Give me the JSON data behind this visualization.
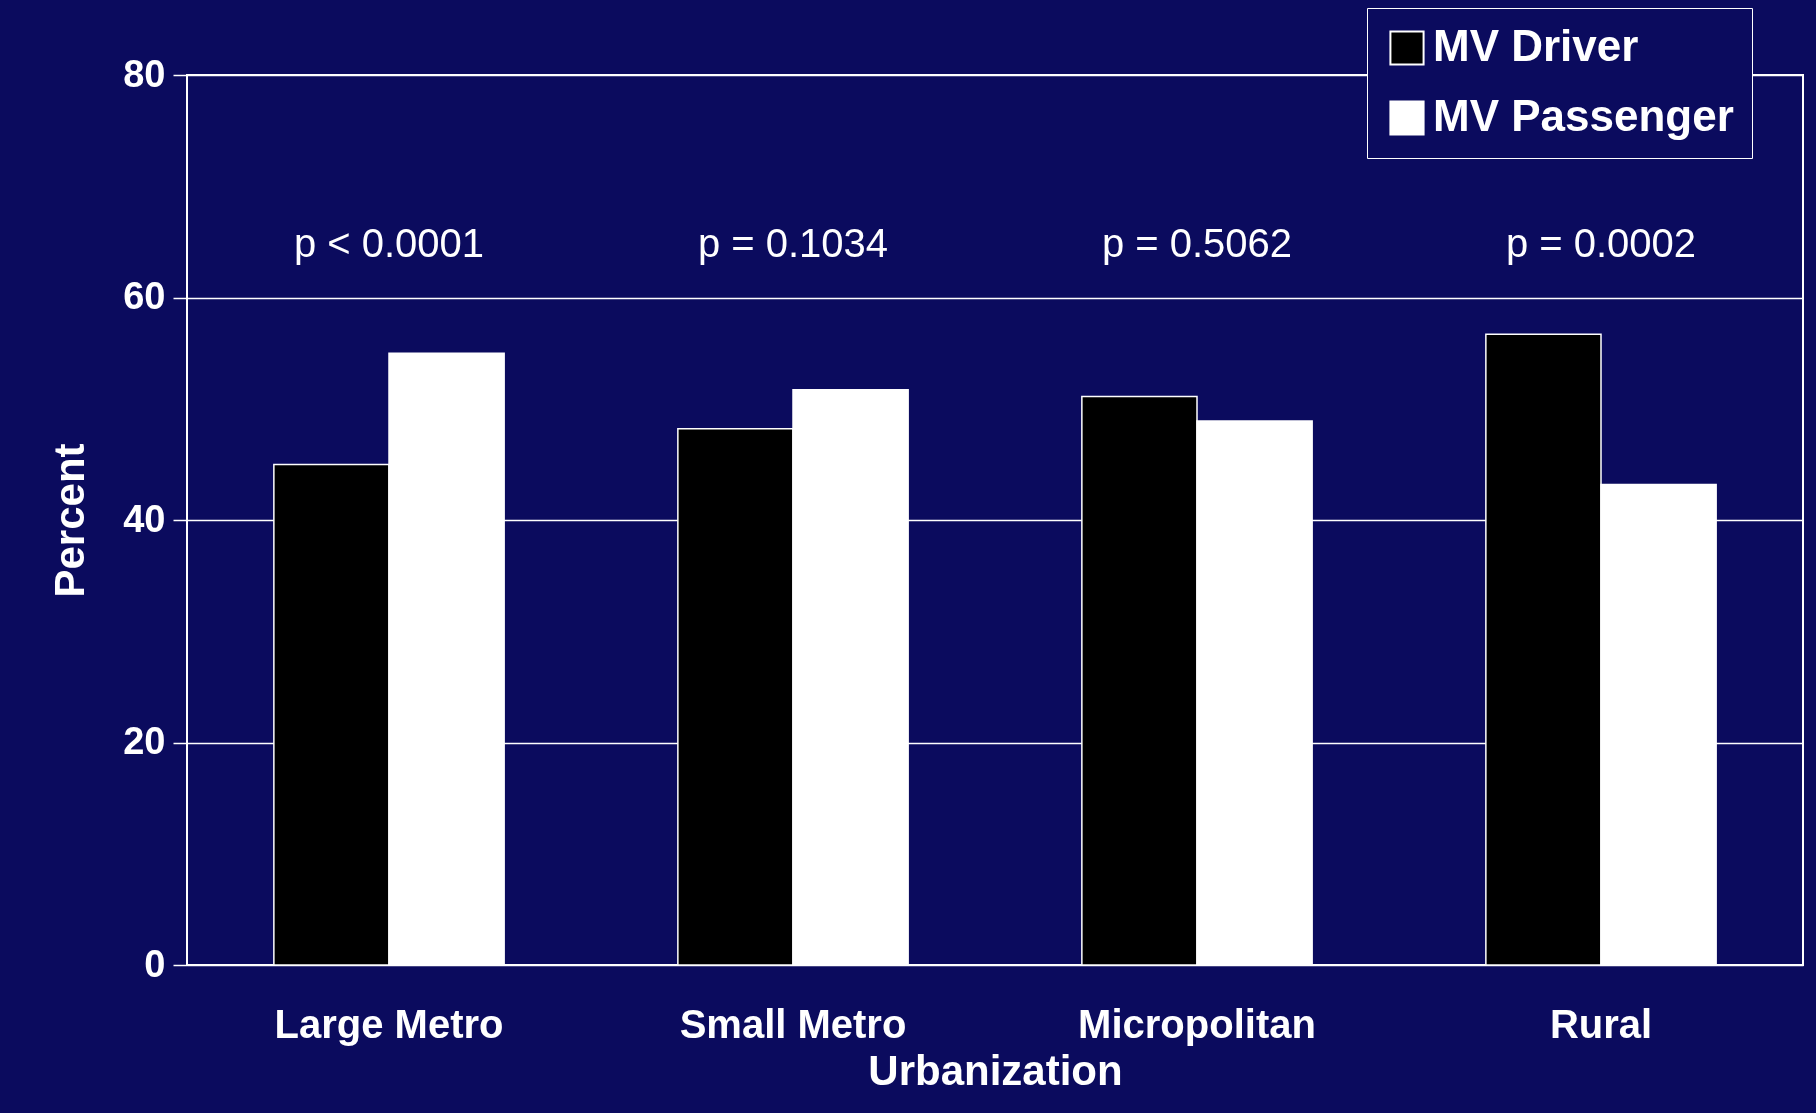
{
  "chart_data": {
    "type": "bar",
    "xlabel": "Urbanization",
    "ylabel": "Percent",
    "categories": [
      "Large Metro",
      "Small Metro",
      "Micropolitan",
      "Rural"
    ],
    "series": [
      {
        "name": "MV Driver",
        "color": "#000000",
        "values": [
          45,
          48.2,
          51.1,
          56.7
        ]
      },
      {
        "name": "MV Passenger",
        "color": "#ffffff",
        "values": [
          55,
          51.7,
          48.9,
          43.2
        ]
      }
    ],
    "ylim": [
      0,
      80
    ],
    "yticks": [
      0,
      20,
      40,
      60,
      80
    ],
    "grid": "y",
    "legend": "top right",
    "annotations": [
      "p < 0.0001",
      "p = 0.1034",
      "p = 0.5062",
      "p = 0.0002"
    ]
  }
}
